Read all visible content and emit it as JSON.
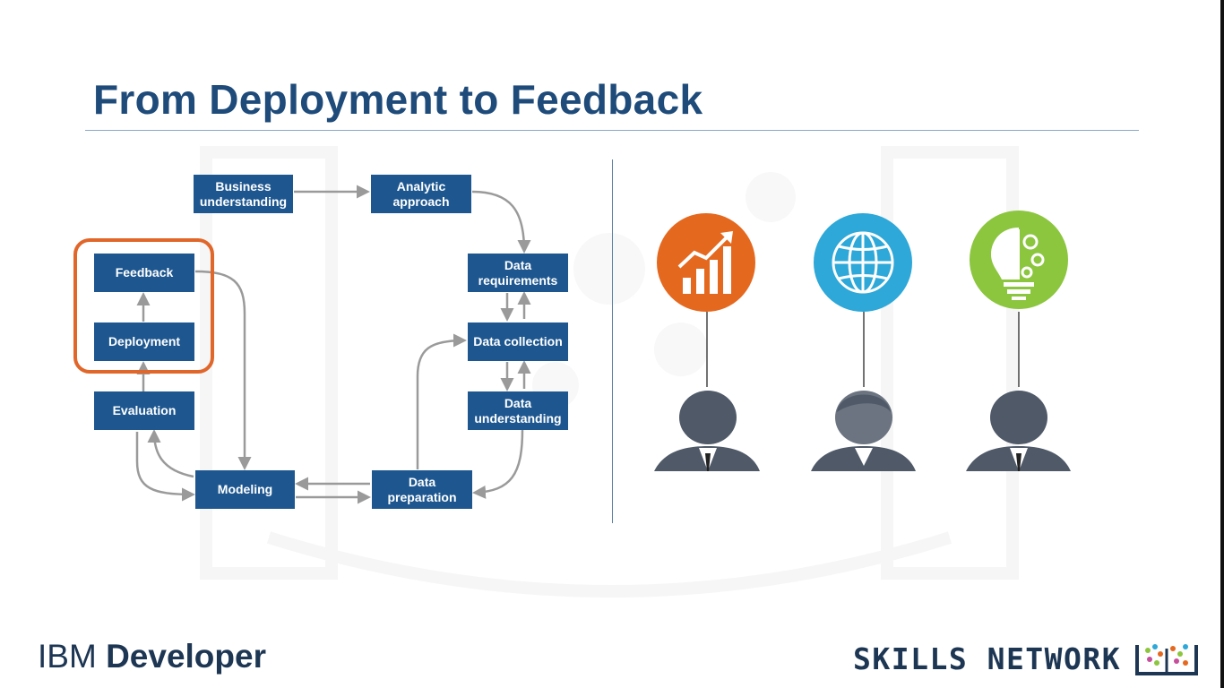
{
  "slide": {
    "title": "From Deployment to Feedback"
  },
  "methodology": {
    "steps": {
      "business_understanding": "Business understanding",
      "analytic_approach": "Analytic approach",
      "data_requirements": "Data requirements",
      "data_collection": "Data collection",
      "data_understanding": "Data understanding",
      "data_preparation": "Data preparation",
      "modeling": "Modeling",
      "evaluation": "Evaluation",
      "deployment": "Deployment",
      "feedback": "Feedback"
    },
    "highlighted_steps": [
      "Deployment",
      "Feedback"
    ],
    "colors": {
      "step_fill": "#1e5790",
      "highlight": "#e0662a",
      "arrow": "#9a9a9a"
    }
  },
  "stakeholders": [
    {
      "icon": "growth-chart-icon",
      "circle_color": "#e5681f"
    },
    {
      "icon": "globe-icon",
      "circle_color": "#2da8d8"
    },
    {
      "icon": "lightbulb-gears-icon",
      "circle_color": "#8cc63f"
    }
  ],
  "footer": {
    "brand_left_prefix": "IBM ",
    "brand_left_bold": "Developer",
    "brand_right": "SKILLS NETWORK"
  }
}
